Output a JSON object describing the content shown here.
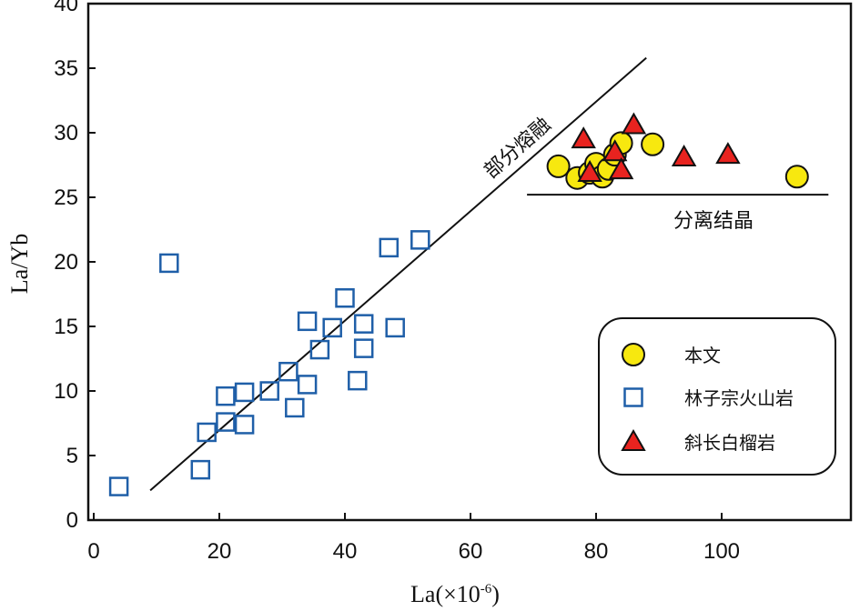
{
  "chart_data": {
    "type": "scatter",
    "title": "",
    "xlabel": "La(×10",
    "xlabel_sup": "-6",
    "xlabel_suffix": ")",
    "ylabel": "La/Yb",
    "xlim": [
      0,
      118
    ],
    "ylim": [
      0,
      40
    ],
    "xticks": [
      0,
      20,
      40,
      60,
      80,
      100
    ],
    "yticks": [
      0,
      5,
      10,
      15,
      20,
      25,
      30,
      35,
      40
    ],
    "grid": false,
    "colors": {
      "circle_fill": "#f7e80f",
      "square_stroke": "#1f5fa8",
      "triangle_fill": "#e8231f",
      "line": "#111111"
    },
    "series": [
      {
        "name": "本文",
        "marker": "circle",
        "points": [
          [
            74,
            27.4
          ],
          [
            77,
            26.5
          ],
          [
            79,
            26.9
          ],
          [
            80,
            27.6
          ],
          [
            81,
            26.6
          ],
          [
            82,
            27.2
          ],
          [
            83,
            28.3
          ],
          [
            84,
            29.2
          ],
          [
            89,
            29.1
          ],
          [
            112,
            26.6
          ]
        ]
      },
      {
        "name": "林子宗火山岩",
        "marker": "square",
        "points": [
          [
            4,
            2.6
          ],
          [
            12,
            19.9
          ],
          [
            17,
            3.9
          ],
          [
            18,
            6.8
          ],
          [
            21,
            9.6
          ],
          [
            21,
            7.6
          ],
          [
            24,
            7.4
          ],
          [
            24,
            9.9
          ],
          [
            28,
            10.0
          ],
          [
            31,
            11.5
          ],
          [
            32,
            8.7
          ],
          [
            34,
            10.5
          ],
          [
            34,
            15.4
          ],
          [
            36,
            13.2
          ],
          [
            38,
            14.9
          ],
          [
            40,
            17.2
          ],
          [
            42,
            10.8
          ],
          [
            43,
            13.3
          ],
          [
            43,
            15.2
          ],
          [
            47,
            21.1
          ],
          [
            48,
            14.9
          ],
          [
            52,
            21.7
          ]
        ]
      },
      {
        "name": "斜长白榴岩",
        "marker": "triangle",
        "points": [
          [
            78,
            29.5
          ],
          [
            79,
            26.9
          ],
          [
            83,
            28.5
          ],
          [
            84,
            27.1
          ],
          [
            86,
            30.6
          ],
          [
            94,
            28.1
          ],
          [
            101,
            28.3
          ]
        ]
      }
    ],
    "lines": [
      {
        "name": "部分熔融",
        "from": [
          9,
          2.3
        ],
        "to": [
          88,
          35.8
        ]
      },
      {
        "name": "分离结晶",
        "from": [
          69,
          25.2
        ],
        "to": [
          117,
          25.2
        ]
      }
    ],
    "annotations": {
      "partial_melting": "部分熔融",
      "fractional_crystallization": "分离结晶"
    },
    "legend_position": "bottom-right"
  }
}
